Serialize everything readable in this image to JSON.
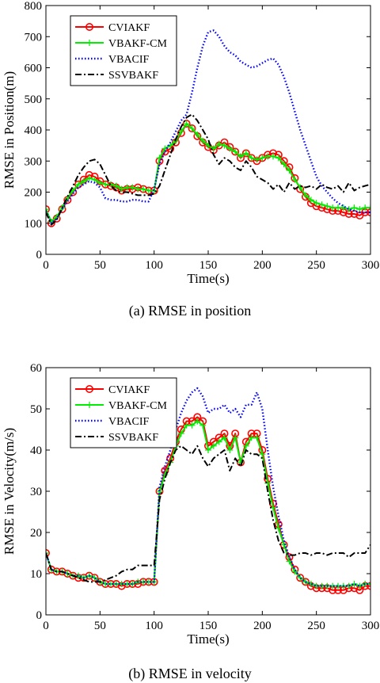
{
  "colors": {
    "cviakf": "#ff0000",
    "vbakf_cm": "#00ee00",
    "vbacif": "#0000ff",
    "ssvbakf": "#000000"
  },
  "captions": {
    "a": "(a) RMSE in position",
    "b": "(b) RMSE in velocity"
  },
  "chart_data": [
    {
      "type": "line",
      "xlabel": "Time(s)",
      "ylabel": "RMSE in Position(m)",
      "xlim": [
        0,
        300
      ],
      "ylim": [
        0,
        800
      ],
      "xticks": [
        0,
        50,
        100,
        150,
        200,
        250,
        300
      ],
      "yticks": [
        0,
        100,
        200,
        300,
        400,
        500,
        600,
        700,
        800
      ],
      "grid": false,
      "legend_position": "top-left",
      "series": [
        {
          "name": "CVIAKF",
          "style": "solid-circle",
          "x": [
            0,
            5,
            10,
            15,
            20,
            25,
            30,
            35,
            40,
            45,
            50,
            55,
            60,
            65,
            70,
            75,
            80,
            85,
            90,
            95,
            100,
            105,
            110,
            115,
            120,
            125,
            130,
            135,
            140,
            145,
            150,
            155,
            160,
            165,
            170,
            175,
            180,
            185,
            190,
            195,
            200,
            205,
            210,
            215,
            220,
            225,
            230,
            235,
            240,
            245,
            250,
            255,
            260,
            265,
            270,
            275,
            280,
            285,
            290,
            295,
            300
          ],
          "y": [
            145,
            100,
            115,
            145,
            175,
            200,
            225,
            240,
            255,
            250,
            235,
            225,
            220,
            215,
            205,
            210,
            210,
            215,
            210,
            205,
            205,
            300,
            330,
            340,
            360,
            390,
            420,
            405,
            380,
            360,
            345,
            335,
            350,
            360,
            345,
            330,
            310,
            325,
            310,
            300,
            310,
            320,
            325,
            320,
            300,
            280,
            245,
            210,
            185,
            165,
            155,
            150,
            145,
            140,
            140,
            135,
            130,
            130,
            125,
            135,
            135
          ]
        },
        {
          "name": "VBAKF-CM",
          "style": "solid-plus",
          "x": [
            0,
            5,
            10,
            15,
            20,
            25,
            30,
            35,
            40,
            45,
            50,
            55,
            60,
            65,
            70,
            75,
            80,
            85,
            90,
            95,
            100,
            105,
            110,
            115,
            120,
            125,
            130,
            135,
            140,
            145,
            150,
            155,
            160,
            165,
            170,
            175,
            180,
            185,
            190,
            195,
            200,
            205,
            210,
            215,
            220,
            225,
            230,
            235,
            240,
            245,
            250,
            255,
            260,
            265,
            270,
            275,
            280,
            285,
            290,
            295,
            300
          ],
          "y": [
            145,
            105,
            120,
            150,
            180,
            205,
            225,
            235,
            245,
            240,
            230,
            225,
            225,
            220,
            210,
            215,
            215,
            210,
            210,
            205,
            205,
            310,
            340,
            350,
            365,
            395,
            420,
            405,
            385,
            365,
            350,
            340,
            355,
            350,
            340,
            330,
            315,
            325,
            310,
            305,
            310,
            315,
            315,
            310,
            290,
            270,
            240,
            215,
            190,
            175,
            165,
            160,
            155,
            150,
            150,
            150,
            145,
            150,
            145,
            150,
            150
          ]
        },
        {
          "name": "VBACIF",
          "style": "dotted",
          "x": [
            0,
            5,
            10,
            15,
            20,
            25,
            30,
            35,
            40,
            45,
            50,
            55,
            60,
            65,
            70,
            75,
            80,
            85,
            90,
            95,
            100,
            105,
            110,
            115,
            120,
            125,
            130,
            135,
            140,
            145,
            150,
            155,
            160,
            165,
            170,
            175,
            180,
            185,
            190,
            195,
            200,
            205,
            210,
            215,
            220,
            225,
            230,
            235,
            240,
            245,
            250,
            255,
            260,
            265,
            270,
            275,
            280,
            285,
            290,
            295,
            300
          ],
          "y": [
            140,
            100,
            115,
            145,
            170,
            195,
            215,
            225,
            235,
            230,
            215,
            180,
            175,
            175,
            170,
            170,
            175,
            175,
            170,
            170,
            210,
            290,
            330,
            360,
            395,
            430,
            450,
            520,
            600,
            670,
            715,
            720,
            700,
            670,
            650,
            640,
            620,
            610,
            600,
            605,
            615,
            625,
            630,
            610,
            570,
            520,
            460,
            400,
            350,
            300,
            250,
            220,
            200,
            180,
            165,
            155,
            145,
            140,
            135,
            135,
            135
          ]
        },
        {
          "name": "SSVBAKF",
          "style": "dashdot",
          "x": [
            0,
            5,
            10,
            15,
            20,
            25,
            30,
            35,
            40,
            45,
            50,
            55,
            60,
            65,
            70,
            75,
            80,
            85,
            90,
            95,
            100,
            105,
            110,
            115,
            120,
            125,
            130,
            135,
            140,
            145,
            150,
            155,
            160,
            165,
            170,
            175,
            180,
            185,
            190,
            195,
            200,
            205,
            210,
            215,
            220,
            225,
            230,
            235,
            240,
            245,
            250,
            255,
            260,
            265,
            270,
            275,
            280,
            285,
            290,
            295,
            300
          ],
          "y": [
            135,
            95,
            110,
            150,
            185,
            220,
            255,
            280,
            300,
            305,
            290,
            255,
            220,
            205,
            200,
            200,
            195,
            190,
            190,
            190,
            195,
            220,
            270,
            320,
            370,
            410,
            440,
            450,
            430,
            400,
            370,
            320,
            290,
            310,
            300,
            280,
            270,
            300,
            280,
            250,
            240,
            230,
            210,
            225,
            200,
            230,
            210,
            220,
            215,
            220,
            210,
            225,
            215,
            210,
            220,
            200,
            230,
            205,
            215,
            220,
            225
          ]
        }
      ]
    },
    {
      "type": "line",
      "xlabel": "Time(s)",
      "ylabel": "RMSE in Velocity(m/s)",
      "xlim": [
        0,
        300
      ],
      "ylim": [
        0,
        60
      ],
      "xticks": [
        0,
        50,
        100,
        150,
        200,
        250,
        300
      ],
      "yticks": [
        0,
        10,
        20,
        30,
        40,
        50,
        60
      ],
      "grid": false,
      "legend_position": "top-left",
      "series": [
        {
          "name": "CVIAKF",
          "style": "solid-circle",
          "x": [
            0,
            5,
            10,
            15,
            20,
            25,
            30,
            35,
            40,
            45,
            50,
            55,
            60,
            65,
            70,
            75,
            80,
            85,
            90,
            95,
            100,
            105,
            110,
            115,
            120,
            125,
            130,
            135,
            140,
            145,
            150,
            155,
            160,
            165,
            170,
            175,
            180,
            185,
            190,
            195,
            200,
            205,
            210,
            215,
            220,
            225,
            230,
            235,
            240,
            245,
            250,
            255,
            260,
            265,
            270,
            275,
            280,
            285,
            290,
            295,
            300
          ],
          "y": [
            15,
            11,
            10.5,
            10.5,
            10,
            9.5,
            9,
            9,
            9.5,
            9,
            8,
            7.5,
            7.5,
            7.5,
            7,
            7.5,
            7.5,
            7.5,
            8,
            8,
            8,
            30,
            35,
            38,
            42,
            45,
            47,
            47,
            48,
            47,
            41,
            42,
            43,
            44,
            41,
            44,
            37,
            42,
            44,
            44,
            40,
            33,
            27,
            22,
            17,
            14,
            11,
            9,
            8,
            7,
            6.5,
            6.5,
            6.5,
            6,
            6,
            6,
            6.5,
            6.5,
            6,
            7,
            7
          ]
        },
        {
          "name": "VBAKF-CM",
          "style": "solid-plus",
          "x": [
            0,
            5,
            10,
            15,
            20,
            25,
            30,
            35,
            40,
            45,
            50,
            55,
            60,
            65,
            70,
            75,
            80,
            85,
            90,
            95,
            100,
            105,
            110,
            115,
            120,
            125,
            130,
            135,
            140,
            145,
            150,
            155,
            160,
            165,
            170,
            175,
            180,
            185,
            190,
            195,
            200,
            205,
            210,
            215,
            220,
            225,
            230,
            235,
            240,
            245,
            250,
            255,
            260,
            265,
            270,
            275,
            280,
            285,
            290,
            295,
            300
          ],
          "y": [
            15,
            11,
            10.5,
            10.5,
            10,
            9.5,
            9.5,
            9,
            9.5,
            9,
            8,
            7.5,
            7.5,
            7.5,
            7.5,
            7.5,
            7.5,
            8,
            8,
            8,
            8,
            30,
            34,
            37,
            41,
            44,
            46,
            46,
            47,
            46,
            40,
            41,
            42,
            43,
            40,
            43,
            37,
            41,
            43,
            43,
            39,
            32,
            26,
            21,
            17,
            13,
            10.5,
            9,
            8,
            7.5,
            7,
            7,
            7,
            7,
            7,
            7,
            7,
            7.5,
            7,
            7.5,
            7.5
          ]
        },
        {
          "name": "VBACIF",
          "style": "dotted",
          "x": [
            0,
            5,
            10,
            15,
            20,
            25,
            30,
            35,
            40,
            45,
            50,
            55,
            60,
            65,
            70,
            75,
            80,
            85,
            90,
            95,
            100,
            105,
            110,
            115,
            120,
            125,
            130,
            135,
            140,
            145,
            150,
            155,
            160,
            165,
            170,
            175,
            180,
            185,
            190,
            195,
            200,
            205,
            210,
            215,
            220,
            225,
            230,
            235,
            240,
            245,
            250,
            255,
            260,
            265,
            270,
            275,
            280,
            285,
            290,
            295,
            300
          ],
          "y": [
            15,
            11,
            10.5,
            10.5,
            10,
            9.5,
            9.5,
            9,
            9.5,
            9,
            8,
            7.5,
            7.5,
            7.5,
            7.5,
            7.5,
            7.5,
            8,
            8,
            8,
            8,
            31,
            36,
            40,
            45,
            49,
            52,
            54,
            55,
            53,
            49,
            50,
            50,
            51,
            49,
            50,
            48,
            51,
            51,
            54,
            50,
            40,
            31,
            24,
            18,
            14,
            11,
            9,
            8,
            7.5,
            7,
            7,
            7,
            7,
            7,
            7,
            7,
            7.5,
            7,
            7.5,
            7.5
          ]
        },
        {
          "name": "SSVBAKF",
          "style": "dashdot",
          "x": [
            0,
            5,
            10,
            15,
            20,
            25,
            30,
            35,
            40,
            45,
            50,
            55,
            60,
            65,
            70,
            75,
            80,
            85,
            90,
            95,
            100,
            105,
            110,
            115,
            120,
            125,
            130,
            135,
            140,
            145,
            150,
            155,
            160,
            165,
            170,
            175,
            180,
            185,
            190,
            195,
            200,
            205,
            210,
            215,
            220,
            225,
            230,
            235,
            240,
            245,
            250,
            255,
            260,
            265,
            270,
            275,
            280,
            285,
            290,
            295,
            300
          ],
          "y": [
            15,
            11,
            10.5,
            10.5,
            10,
            9.5,
            9,
            8.5,
            8,
            8,
            8,
            8.5,
            9,
            9.5,
            10.5,
            11,
            11,
            12,
            12,
            12,
            12,
            28,
            33,
            37,
            40,
            41,
            40,
            39,
            41,
            38,
            36,
            38,
            39,
            40,
            35,
            38,
            36,
            40,
            39,
            39,
            38,
            30,
            23,
            18,
            15,
            14.5,
            14.5,
            15,
            15,
            14.5,
            15,
            15,
            14.5,
            15,
            15,
            15,
            14,
            15,
            15,
            15,
            17
          ]
        }
      ]
    }
  ]
}
